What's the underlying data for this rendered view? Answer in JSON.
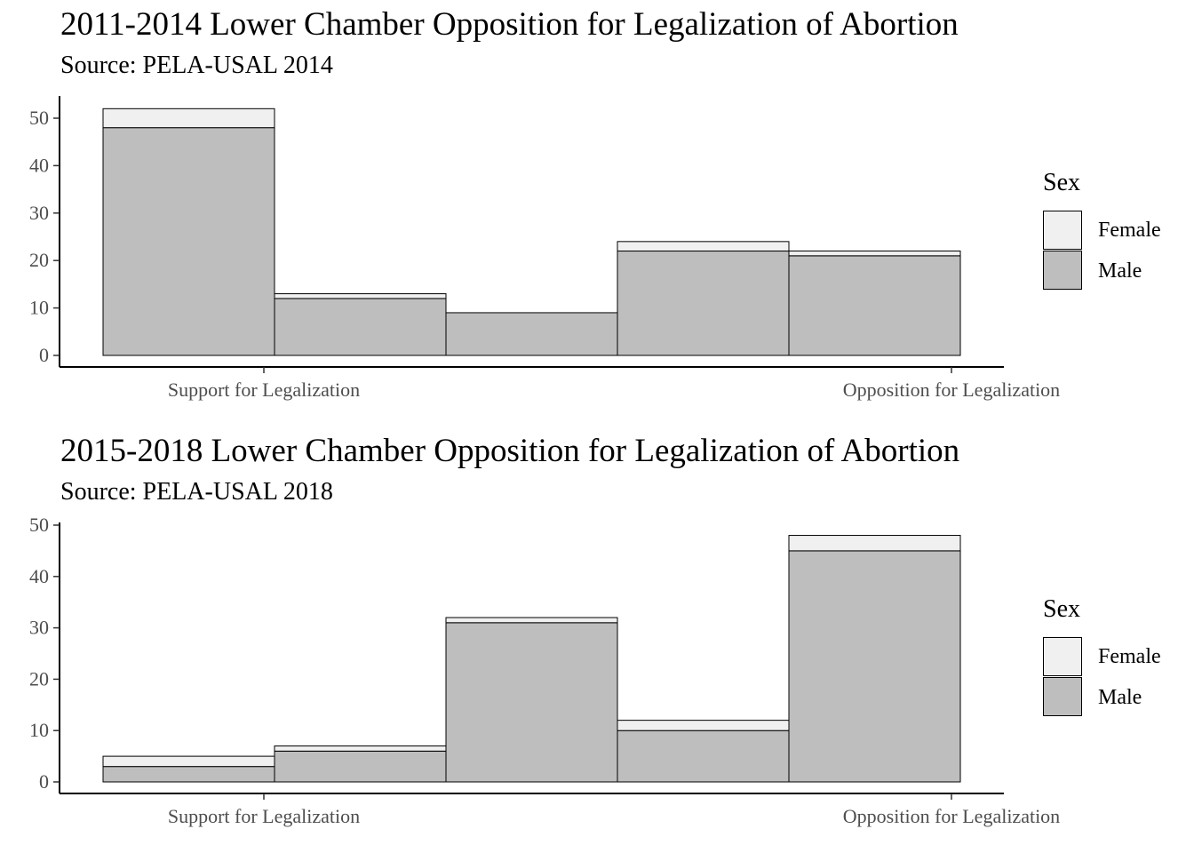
{
  "chart_data": [
    {
      "type": "bar",
      "stacked": true,
      "title": "2011-2014 Lower Chamber Opposition for Legalization of Abortion",
      "subtitle": "Source: PELA-USAL 2014",
      "bins": 5,
      "x_tick_labels": [
        "Support for Legalization",
        "Opposition for Legalization"
      ],
      "series": [
        {
          "name": "Male",
          "color": "#bebebe",
          "values": [
            48,
            12,
            9,
            22,
            21
          ]
        },
        {
          "name": "Female",
          "color": "#f0f0f0",
          "values": [
            4,
            1,
            0,
            2,
            1
          ]
        }
      ],
      "ylim": [
        0,
        50
      ],
      "yticks": [
        0,
        10,
        20,
        30,
        40,
        50
      ],
      "legend": {
        "title": "Sex",
        "position": "right",
        "entries": [
          "Female",
          "Male"
        ]
      },
      "grid": false
    },
    {
      "type": "bar",
      "stacked": true,
      "title": "2015-2018 Lower Chamber Opposition for Legalization of Abortion",
      "subtitle": "Source: PELA-USAL 2018",
      "bins": 5,
      "x_tick_labels": [
        "Support for Legalization",
        "Opposition for Legalization"
      ],
      "series": [
        {
          "name": "Male",
          "color": "#bebebe",
          "values": [
            3,
            6,
            31,
            10,
            45
          ]
        },
        {
          "name": "Female",
          "color": "#f0f0f0",
          "values": [
            2,
            1,
            1,
            2,
            3
          ]
        }
      ],
      "ylim": [
        0,
        50
      ],
      "yticks": [
        0,
        10,
        20,
        30,
        40,
        50
      ],
      "legend": {
        "title": "Sex",
        "position": "right",
        "entries": [
          "Female",
          "Male"
        ]
      },
      "grid": false
    }
  ]
}
